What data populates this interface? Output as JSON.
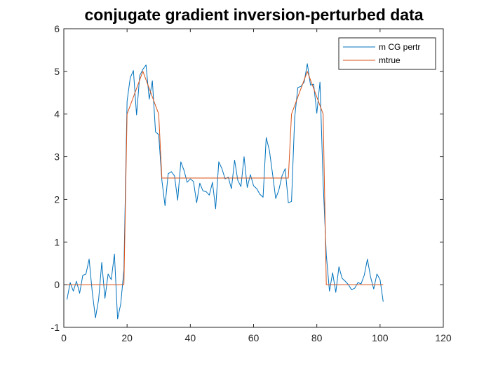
{
  "chart_data": {
    "type": "line",
    "title": "conjugate gradient inversion-perturbed data",
    "xlabel": "",
    "ylabel": "",
    "xlim": [
      0,
      120
    ],
    "ylim": [
      -1,
      6
    ],
    "xticks": [
      0,
      20,
      40,
      60,
      80,
      100,
      120
    ],
    "yticks": [
      -1,
      0,
      1,
      2,
      3,
      4,
      5,
      6
    ],
    "grid": false,
    "legend": {
      "placement": "top-right"
    },
    "series": [
      {
        "name": "m CG pertr",
        "color": "#0072BD",
        "x": [
          1,
          2,
          3,
          4,
          5,
          6,
          7,
          8,
          9,
          10,
          11,
          12,
          13,
          14,
          15,
          16,
          17,
          18,
          19,
          20,
          21,
          22,
          23,
          24,
          25,
          26,
          27,
          28,
          29,
          30,
          31,
          32,
          33,
          34,
          35,
          36,
          37,
          38,
          39,
          40,
          41,
          42,
          43,
          44,
          45,
          46,
          47,
          48,
          49,
          50,
          51,
          52,
          53,
          54,
          55,
          56,
          57,
          58,
          59,
          60,
          61,
          62,
          63,
          64,
          65,
          66,
          67,
          68,
          69,
          70,
          71,
          72,
          73,
          74,
          75,
          76,
          77,
          78,
          79,
          80,
          81,
          82,
          83,
          84,
          85,
          86,
          87,
          88,
          89,
          90,
          91,
          92,
          93,
          94,
          95,
          96,
          97,
          98,
          99,
          100,
          101
        ],
        "y": [
          -0.35,
          0.05,
          -0.15,
          0.08,
          -0.2,
          0.22,
          0.25,
          0.6,
          -0.18,
          -0.78,
          -0.35,
          0.52,
          -0.32,
          0.25,
          0.12,
          0.72,
          -0.8,
          -0.45,
          0.35,
          4.3,
          4.85,
          5.02,
          3.98,
          4.9,
          5.05,
          5.15,
          4.35,
          4.78,
          3.58,
          3.52,
          2.45,
          1.85,
          2.6,
          2.65,
          2.55,
          1.98,
          2.88,
          2.68,
          2.4,
          2.48,
          2.42,
          1.92,
          2.38,
          2.2,
          2.18,
          2.1,
          2.4,
          1.78,
          2.88,
          2.72,
          2.48,
          2.52,
          2.25,
          2.92,
          2.45,
          2.3,
          3.0,
          2.28,
          2.58,
          2.32,
          2.25,
          2.12,
          2.05,
          3.45,
          3.15,
          2.6,
          2.02,
          2.22,
          2.55,
          2.72,
          1.92,
          1.95,
          3.92,
          4.62,
          4.65,
          4.75,
          5.18,
          4.68,
          4.7,
          4.02,
          4.75,
          2.4,
          0.7,
          -0.15,
          0.28,
          -0.18,
          0.42,
          0.15,
          0.08,
          0.0,
          -0.12,
          -0.08,
          0.05,
          0.02,
          0.22,
          0.6,
          0.18,
          -0.1,
          0.25,
          0.12,
          -0.4
        ]
      },
      {
        "name": "mtrue",
        "color": "#D95319",
        "x": [
          1,
          19,
          20,
          25,
          30,
          31,
          71,
          72,
          77,
          82,
          83,
          101
        ],
        "y": [
          0,
          0,
          4,
          5,
          4,
          2.5,
          2.5,
          4,
          5,
          4,
          0,
          0
        ]
      }
    ]
  }
}
